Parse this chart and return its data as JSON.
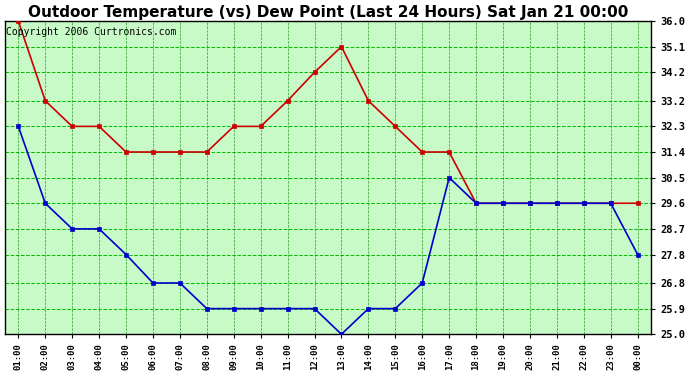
{
  "title": "Outdoor Temperature (vs) Dew Point (Last 24 Hours) Sat Jan 21 00:00",
  "copyright": "Copyright 2006 Curtronics.com",
  "x_labels": [
    "01:00",
    "02:00",
    "03:00",
    "04:00",
    "05:00",
    "06:00",
    "07:00",
    "08:00",
    "09:00",
    "10:00",
    "11:00",
    "12:00",
    "13:00",
    "14:00",
    "15:00",
    "16:00",
    "17:00",
    "18:00",
    "19:00",
    "20:00",
    "21:00",
    "22:00",
    "23:00",
    "00:00"
  ],
  "y_ticks": [
    25.0,
    25.9,
    26.8,
    27.8,
    28.7,
    29.6,
    30.5,
    31.4,
    32.3,
    33.2,
    34.2,
    35.1,
    36.0
  ],
  "y_min": 25.0,
  "y_max": 36.0,
  "temp_data": [
    36.0,
    33.2,
    32.3,
    32.3,
    31.4,
    31.4,
    31.4,
    31.4,
    32.3,
    32.3,
    33.2,
    34.2,
    35.1,
    33.2,
    32.3,
    31.4,
    31.4,
    29.6,
    29.6,
    29.6,
    29.6,
    29.6,
    29.6,
    29.6
  ],
  "dew_data": [
    32.3,
    29.6,
    28.7,
    28.7,
    27.8,
    26.8,
    26.8,
    25.9,
    25.9,
    25.9,
    25.9,
    25.9,
    25.0,
    25.9,
    25.9,
    26.8,
    30.5,
    29.6,
    29.6,
    29.6,
    29.6,
    29.6,
    29.6,
    27.8
  ],
  "temp_color": "#cc0000",
  "dew_color": "#0000cc",
  "bg_color": "#c8fac8",
  "grid_color_h": "#00bb00",
  "grid_color_v": "#008800",
  "title_fontsize": 11,
  "copyright_fontsize": 7
}
